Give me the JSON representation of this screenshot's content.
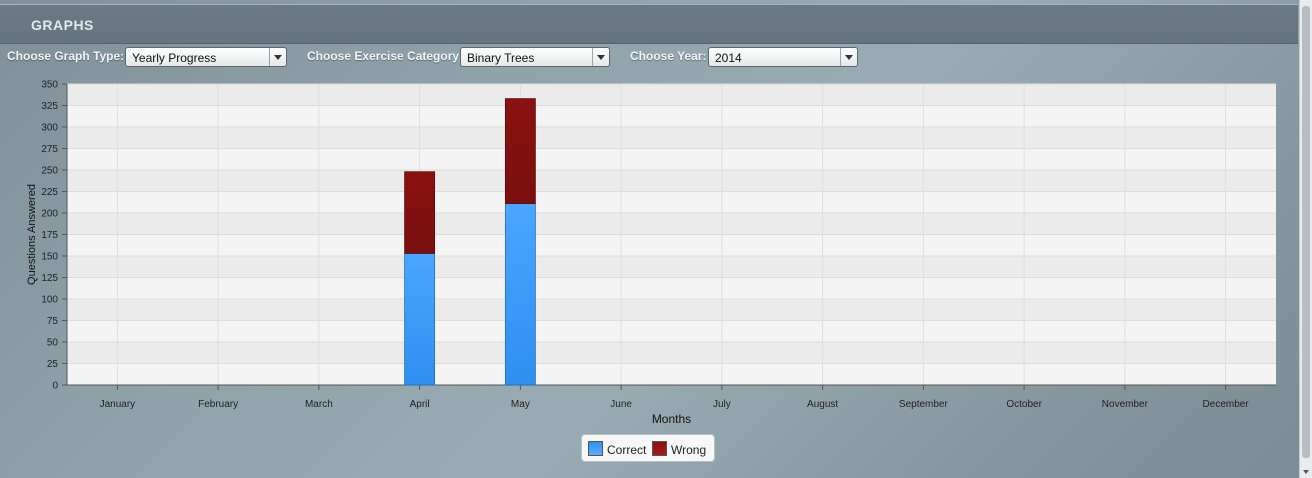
{
  "header": {
    "title": "GRAPHS"
  },
  "controls": {
    "graph_type": {
      "label": "Choose Graph Type:",
      "value": "Yearly Progress"
    },
    "category": {
      "label": "Choose Exercise Category:",
      "value": "Binary Trees"
    },
    "year": {
      "label": "Choose Year:",
      "value": "2014"
    }
  },
  "colors": {
    "correct": "#2f8ff0",
    "wrong": "#8b1111"
  },
  "chart_data": {
    "type": "bar",
    "stacked": true,
    "categories": [
      "January",
      "February",
      "March",
      "April",
      "May",
      "June",
      "July",
      "August",
      "September",
      "October",
      "November",
      "December"
    ],
    "series": [
      {
        "name": "Correct",
        "values": [
          0,
          0,
          0,
          153,
          211,
          0,
          0,
          0,
          0,
          0,
          0,
          0
        ]
      },
      {
        "name": "Wrong",
        "values": [
          0,
          0,
          0,
          95,
          122,
          0,
          0,
          0,
          0,
          0,
          0,
          0
        ]
      }
    ],
    "xlabel": "Months",
    "ylabel": "Questions Answered",
    "ylim": [
      0,
      350
    ],
    "yticks": [
      "0",
      "25",
      "50",
      "75",
      "100",
      "125",
      "150",
      "175",
      "200",
      "225",
      "250",
      "275",
      "300",
      "325",
      "350"
    ],
    "grid": true,
    "legend_position": "bottom-center"
  },
  "legend": {
    "correct": "Correct",
    "wrong": "Wrong"
  }
}
